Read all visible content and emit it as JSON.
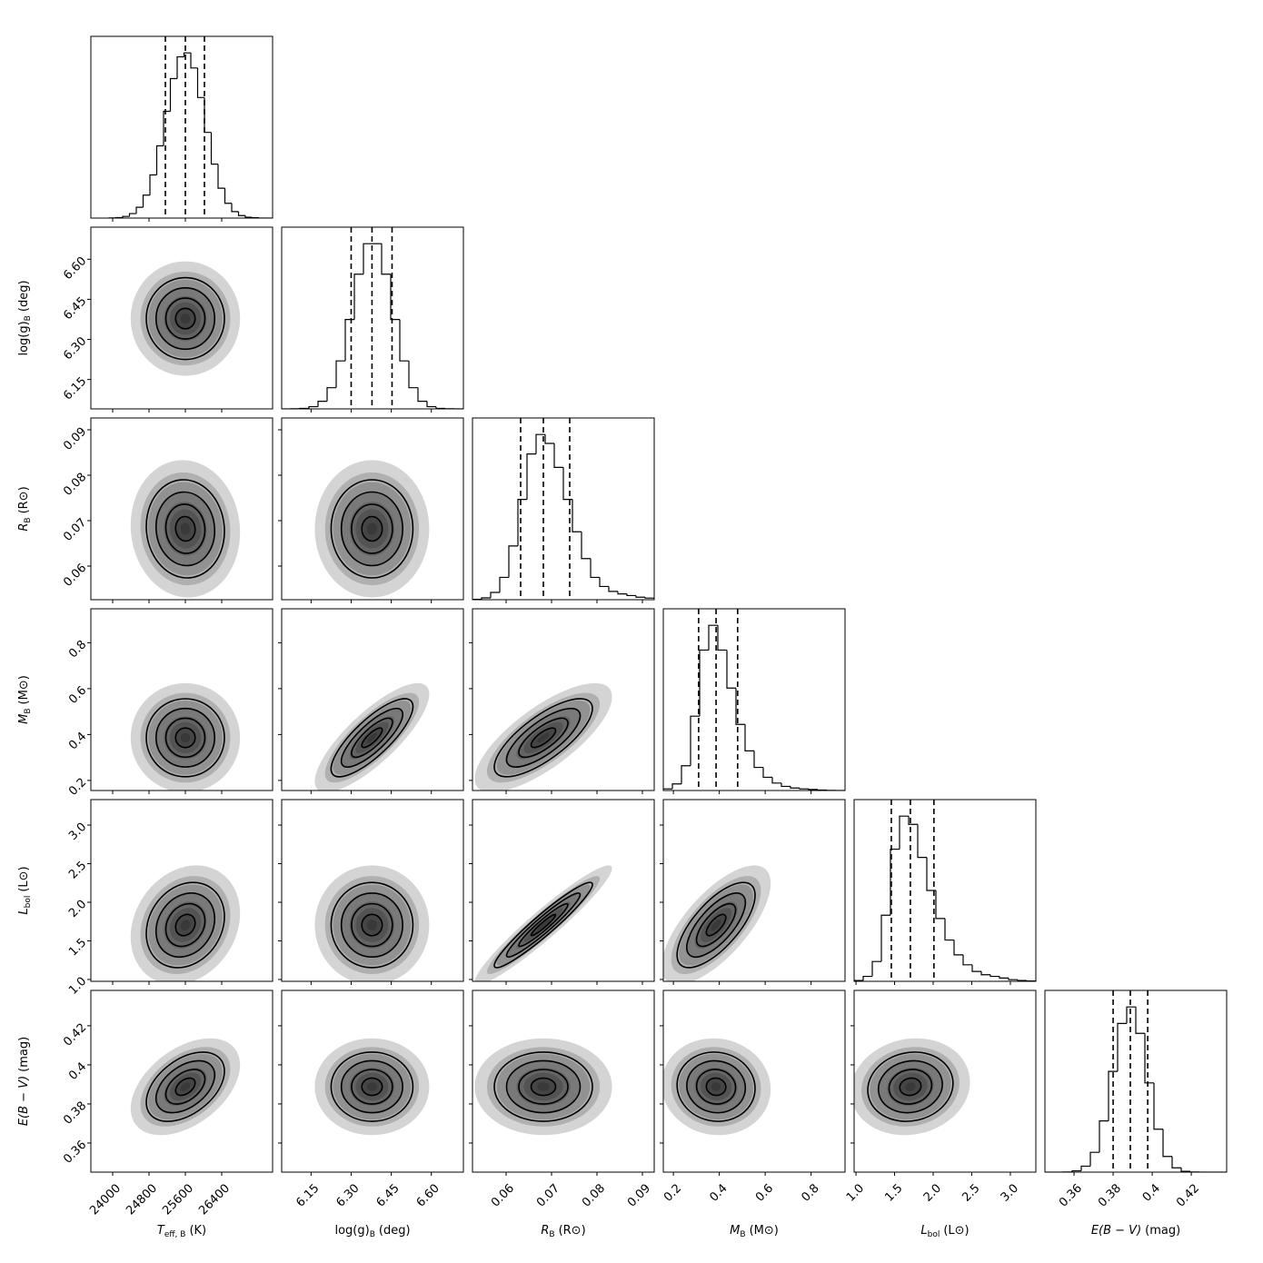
{
  "chart_data": {
    "type": "corner",
    "params": [
      {
        "label": {
          "symbol": "T",
          "sub": "eff, B",
          "unit": "(K)"
        },
        "italic": true,
        "xlim": [
          23520,
          27520
        ],
        "xticks": [
          24000,
          24800,
          25600,
          26400
        ],
        "quantiles": [
          25160,
          25600,
          26020
        ],
        "bins": [
          23920,
          24070,
          24220,
          24370,
          24520,
          24670,
          24820,
          24970,
          25120,
          25270,
          25420,
          25570,
          25720,
          25870,
          26020,
          26170,
          26320,
          26470,
          26620,
          26770,
          26920,
          27070,
          27220,
          27370,
          27520
        ],
        "counts": [
          0.1,
          0.3,
          1.0,
          2.7,
          6.5,
          13.8,
          26.0,
          43.5,
          64.3,
          84.0,
          97.1,
          99.5,
          90.4,
          72.6,
          51.6,
          32.5,
          18.0,
          8.9,
          3.9,
          1.5,
          0.5,
          0.2,
          0,
          0
        ]
      },
      {
        "label": {
          "symbol": "log(g)",
          "sub": "B",
          "unit": "(deg)"
        },
        "italic": false,
        "xlim": [
          6.04,
          6.72
        ],
        "xticks": [
          6.15,
          {
            "value": 6.3,
            "label": "6.30"
          },
          6.45,
          {
            "value": 6.6,
            "label": "6.60"
          }
        ],
        "quantiles": [
          6.3,
          6.378,
          6.453
        ],
        "bins": [
          6.04,
          6.074,
          6.108,
          6.142,
          6.176,
          6.21,
          6.244,
          6.278,
          6.312,
          6.346,
          6.38,
          6.414,
          6.448,
          6.482,
          6.516,
          6.55,
          6.584,
          6.618,
          6.652,
          6.686,
          6.72
        ],
        "counts": [
          0,
          0.1,
          0.3,
          1.3,
          4.5,
          12.5,
          28.3,
          52.7,
          79.4,
          97.4,
          97.4,
          79.4,
          52.7,
          28.3,
          12.5,
          4.5,
          1.3,
          0.3,
          0.1,
          0
        ]
      },
      {
        "label": {
          "symbol": "R",
          "sub": "B",
          "unit": "(R⊙)"
        },
        "italic": true,
        "xlim": [
          0.0526,
          0.0926
        ],
        "xticks": [
          0.06,
          0.07,
          0.08,
          0.09
        ],
        "quantiles": [
          0.0632,
          0.0682,
          0.074
        ],
        "bins": [
          0.0526,
          0.0546,
          0.0566,
          0.0586,
          0.0606,
          0.0626,
          0.0646,
          0.0666,
          0.0686,
          0.0706,
          0.0726,
          0.0746,
          0.0766,
          0.0786,
          0.0806,
          0.0826,
          0.0846,
          0.0866,
          0.0886,
          0.0906,
          0.0926
        ],
        "counts": [
          0.2,
          1.1,
          4.4,
          13.5,
          32.5,
          60.7,
          88.2,
          100,
          94.6,
          80.1,
          60.7,
          41.1,
          24.9,
          13.5,
          8,
          5,
          3.5,
          2.5,
          1.5,
          1
        ]
      },
      {
        "label": {
          "symbol": "M",
          "sub": "B",
          "unit": "(M⊙)"
        },
        "italic": true,
        "xlim": [
          0.156,
          0.948
        ],
        "xticks": [
          0.2,
          0.4,
          0.6,
          0.8
        ],
        "quantiles": [
          0.31,
          0.386,
          0.48
        ],
        "bins": [
          0.156,
          0.1956,
          0.2352,
          0.2748,
          0.3144,
          0.354,
          0.3936,
          0.4332,
          0.4728,
          0.5124,
          0.552,
          0.5916,
          0.6312,
          0.6708,
          0.7104,
          0.75,
          0.7896,
          0.8292,
          0.8688,
          0.9084,
          0.948
        ],
        "counts": [
          1,
          4,
          15,
          45,
          85,
          100,
          85,
          62,
          40,
          24,
          14,
          8,
          4.5,
          2.5,
          1.5,
          1,
          0.6,
          0.3,
          0.1,
          0
        ]
      },
      {
        "label": {
          "symbol": "L",
          "sub": "bol",
          "unit": "(L⊙)"
        },
        "italic": true,
        "xlim": [
          0.976,
          3.33
        ],
        "xticks": [
          {
            "value": 1,
            "label": "1.0"
          },
          1.5,
          {
            "value": 2,
            "label": "2.0"
          },
          2.5,
          {
            "value": 3,
            "label": "3.0"
          }
        ],
        "quantiles": [
          1.458,
          1.705,
          2.01
        ],
        "bins": [
          0.976,
          1.0937,
          1.2114,
          1.3291,
          1.4468,
          1.5645,
          1.6822,
          1.7999,
          1.9176,
          2.0353,
          2.153,
          2.2707,
          2.3884,
          2.5061,
          2.6238,
          2.7415,
          2.8592,
          2.9769,
          3.0946,
          3.2123,
          3.33
        ],
        "counts": [
          0.5,
          3,
          12,
          40,
          80,
          100,
          95,
          75,
          55,
          38,
          25,
          16,
          10,
          6,
          4,
          3,
          2,
          1,
          0.5,
          0.2
        ]
      },
      {
        "label": {
          "symbol": "E(B − V)",
          "unit": "(mag)"
        },
        "italic": true,
        "xlim": [
          0.3451,
          0.4381
        ],
        "xticks": [
          0.36,
          0.38,
          0.4,
          0.42
        ],
        "quantiles": [
          0.38,
          0.3888,
          0.3977
        ],
        "bins": [
          0.3451,
          0.34975,
          0.3544,
          0.35905,
          0.3637,
          0.36835,
          0.373,
          0.37765,
          0.3823,
          0.38695,
          0.3916,
          0.39625,
          0.4009,
          0.40555,
          0.4102,
          0.41485,
          0.4195,
          0.42415,
          0.4288,
          0.43345,
          0.4381
        ],
        "counts": [
          0,
          0,
          0.1,
          0.8,
          3.6,
          12,
          31,
          61,
          90,
          100,
          84,
          54,
          26,
          9.5,
          2.6,
          0.5,
          0.1,
          0,
          0,
          0
        ]
      }
    ],
    "pairs": [
      {
        "x": 0,
        "y": 1,
        "rho": 0.0
      },
      {
        "x": 0,
        "y": 2,
        "rho": -0.05
      },
      {
        "x": 1,
        "y": 2,
        "rho": 0.0
      },
      {
        "x": 0,
        "y": 3,
        "rho": 0.0
      },
      {
        "x": 1,
        "y": 3,
        "rho": 0.8
      },
      {
        "x": 2,
        "y": 3,
        "rho": 0.75
      },
      {
        "x": 0,
        "y": 4,
        "rho": 0.2
      },
      {
        "x": 1,
        "y": 4,
        "rho": 0.0
      },
      {
        "x": 2,
        "y": 4,
        "rho": 0.95
      },
      {
        "x": 3,
        "y": 4,
        "rho": 0.7
      },
      {
        "x": 0,
        "y": 5,
        "rho": 0.45
      },
      {
        "x": 1,
        "y": 5,
        "rho": 0.0
      },
      {
        "x": 2,
        "y": 5,
        "rho": 0.0
      },
      {
        "x": 3,
        "y": 5,
        "rho": -0.05
      },
      {
        "x": 4,
        "y": 5,
        "rho": 0.1
      }
    ]
  }
}
